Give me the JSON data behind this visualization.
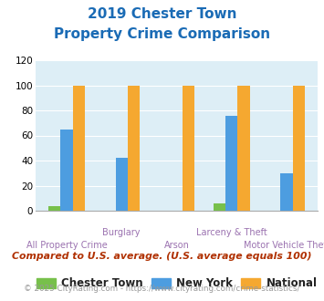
{
  "title_line1": "2019 Chester Town",
  "title_line2": "Property Crime Comparison",
  "categories": [
    "All Property Crime",
    "Burglary",
    "Arson",
    "Larceny & Theft",
    "Motor Vehicle Theft"
  ],
  "chester_town": [
    4,
    0,
    0,
    6,
    0
  ],
  "new_york": [
    65,
    42,
    0,
    76,
    30
  ],
  "national": [
    100,
    100,
    100,
    100,
    100
  ],
  "chester_color": "#77c04b",
  "newyork_color": "#4d9de0",
  "national_color": "#f5a830",
  "bg_color": "#ddeef6",
  "ylim": [
    0,
    120
  ],
  "yticks": [
    0,
    20,
    40,
    60,
    80,
    100,
    120
  ],
  "footnote1": "Compared to U.S. average. (U.S. average equals 100)",
  "footnote2": "© 2025 CityRating.com - https://www.cityrating.com/crime-statistics/",
  "title_color": "#1a6bb5",
  "xticklabel_color": "#9b72b0",
  "footnote1_color": "#b03000",
  "footnote2_color": "#999999",
  "upper_labels": [
    "",
    "Burglary",
    "",
    "Larceny & Theft",
    ""
  ],
  "lower_labels": [
    "All Property Crime",
    "",
    "Arson",
    "",
    "Motor Vehicle Theft"
  ]
}
